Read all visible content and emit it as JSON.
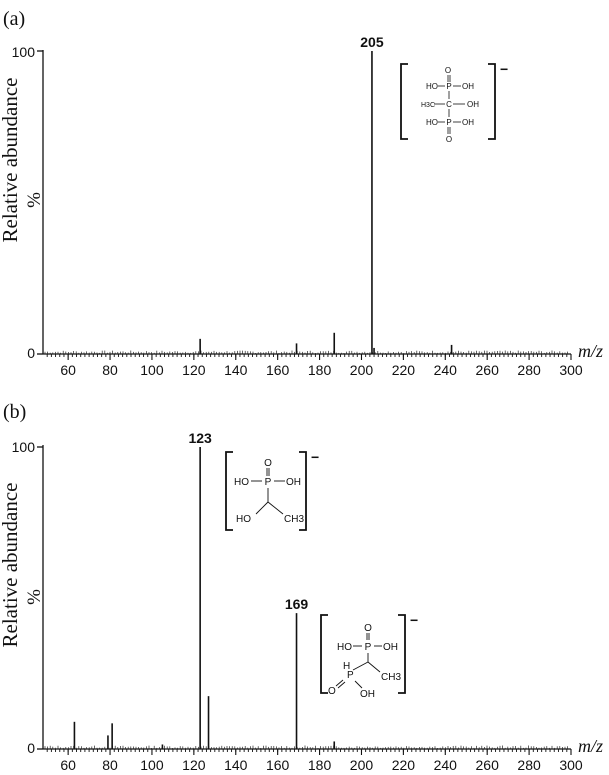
{
  "chart_data": [
    {
      "panel": "(a)",
      "type": "bar",
      "ylabel": "Relative abundance",
      "ylabel_unit": "%",
      "xlabel": "m/z",
      "xlim": [
        48,
        300
      ],
      "ylim": [
        0,
        100
      ],
      "y_ticks": [
        "0",
        "100"
      ],
      "x_ticks": [
        60,
        80,
        100,
        120,
        140,
        160,
        180,
        200,
        220,
        240,
        260,
        280,
        300
      ],
      "peaks": [
        {
          "x": 123,
          "y": 5
        },
        {
          "x": 169,
          "y": 3.5
        },
        {
          "x": 187,
          "y": 7
        },
        {
          "x": 205,
          "y": 100,
          "label": "205"
        },
        {
          "x": 206,
          "y": 2
        },
        {
          "x": 243,
          "y": 3
        }
      ],
      "structure": {
        "charge": "−",
        "rows": [
          [
            "HO",
            "P",
            "OH"
          ],
          [
            "H3C",
            "C",
            "OH"
          ],
          [
            "HO",
            "P",
            "OH"
          ]
        ],
        "top_atom": "O",
        "bottom_atom": "O"
      }
    },
    {
      "panel": "(b)",
      "type": "bar",
      "ylabel": "Relative abundance",
      "ylabel_unit": "%",
      "xlabel": "m/z",
      "xlim": [
        48,
        300
      ],
      "ylim": [
        0,
        100
      ],
      "y_ticks": [
        "0",
        "100"
      ],
      "x_ticks": [
        60,
        80,
        100,
        120,
        140,
        160,
        180,
        200,
        220,
        240,
        260,
        280,
        300
      ],
      "peaks": [
        {
          "x": 63,
          "y": 9
        },
        {
          "x": 79,
          "y": 4.5
        },
        {
          "x": 81,
          "y": 8.5
        },
        {
          "x": 105,
          "y": 1.5
        },
        {
          "x": 123,
          "y": 100,
          "label": "123"
        },
        {
          "x": 127,
          "y": 17.5
        },
        {
          "x": 169,
          "y": 45,
          "label": "169"
        },
        {
          "x": 187,
          "y": 2.5
        }
      ],
      "structures": [
        {
          "charge": "−",
          "atoms": [
            "O",
            "P",
            "HO",
            "OH",
            "HO",
            "CH3"
          ]
        },
        {
          "charge": "−",
          "atoms": [
            "O",
            "P",
            "HO",
            "OH",
            "H",
            "P",
            "CH3",
            "O",
            "OH"
          ]
        }
      ]
    }
  ]
}
